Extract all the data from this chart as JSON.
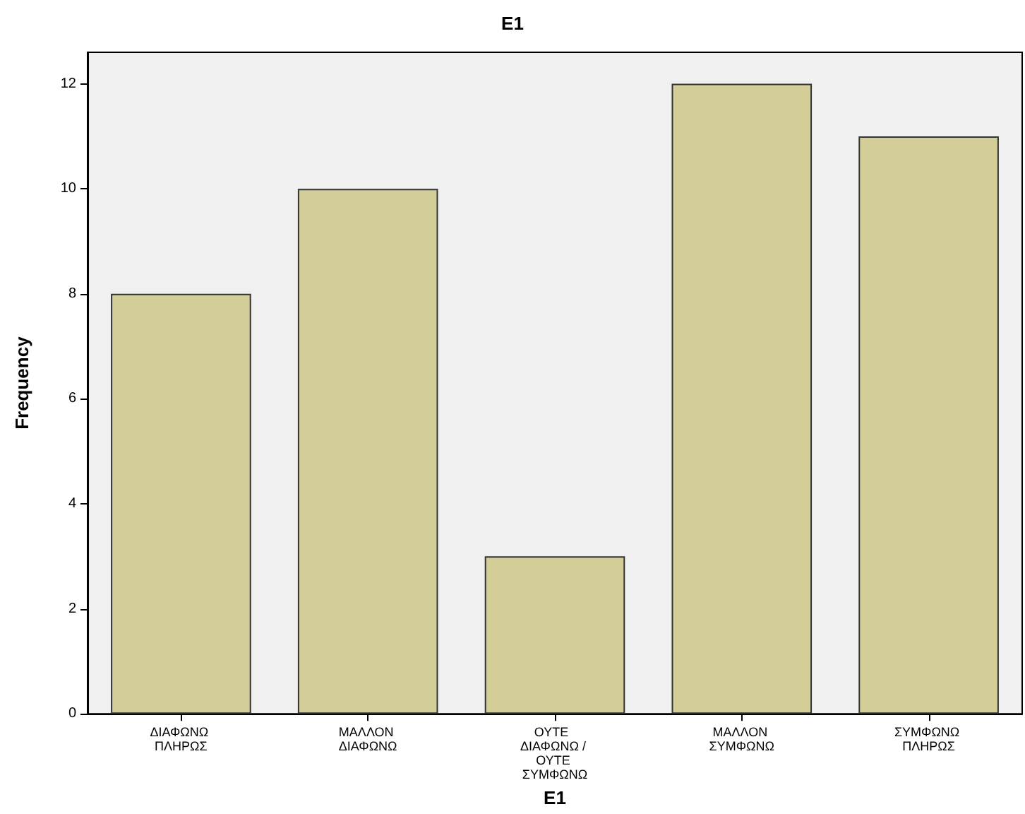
{
  "chart_data": {
    "type": "bar",
    "title": "E1",
    "xlabel": "E1",
    "ylabel": "Frequency",
    "categories": [
      "ΔΙΑΦΩΝΩ ΠΛΗΡΩΣ",
      "ΜΑΛΛΟΝ ΔΙΑΦΩΝΩ",
      "ΟΥΤΕ  ΔΙΑΦΩΝΩ / ΟΥΤΕ ΣΥΜΦΩΝΩ",
      "ΜΑΛΛΟΝ ΣΥΜΦΩΝΩ",
      "ΣΥΜΦΩΝΩ ΠΛΗΡΩΣ"
    ],
    "values": [
      8,
      10,
      3,
      12,
      11
    ],
    "color": "#d3ce97",
    "ylim": [
      0,
      12.6
    ],
    "yticks": [
      0,
      2,
      4,
      6,
      8,
      10,
      12
    ],
    "grid": false
  }
}
